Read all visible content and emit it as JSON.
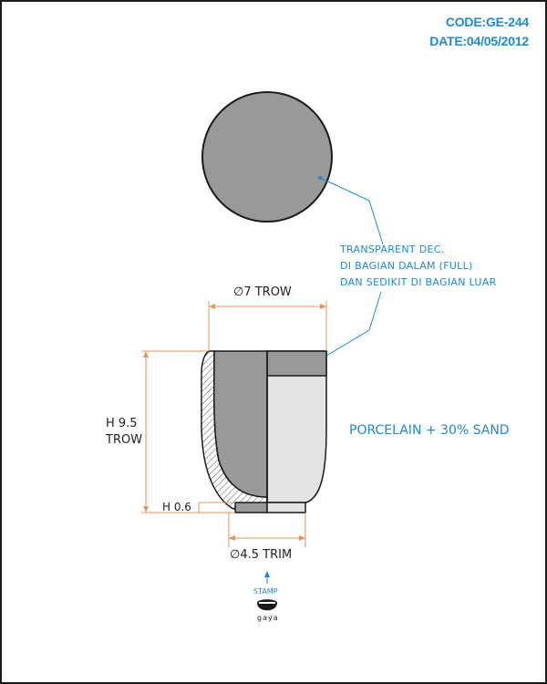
{
  "header": {
    "code": "CODE:GE-244",
    "date": "DATE:04/05/2012"
  },
  "dimensions": {
    "top_diameter": "∅7 TROW",
    "height_line1": "H 9.5",
    "height_line2": "TROW",
    "foot_height": "H 0.6",
    "bottom_diameter": "∅4.5 TRIM"
  },
  "notes": {
    "decoration_line1": "TRANSPARENT DEC.",
    "decoration_line2": "DI BAGIAN DALAM (FULL)",
    "decoration_line3": "DAN SEDIKIT DI BAGIAN LUAR",
    "material": "PORCELAIN + 30% SAND"
  },
  "stamp": {
    "label": "STAMP",
    "brand": "gaya"
  },
  "colors": {
    "accent_blue": "#1e8ad0",
    "dimension_orange": "#e8925a",
    "glaze_dark_gray": "#999999",
    "body_light_gray": "#e3e3e3",
    "outline": "#1a1a1a"
  }
}
